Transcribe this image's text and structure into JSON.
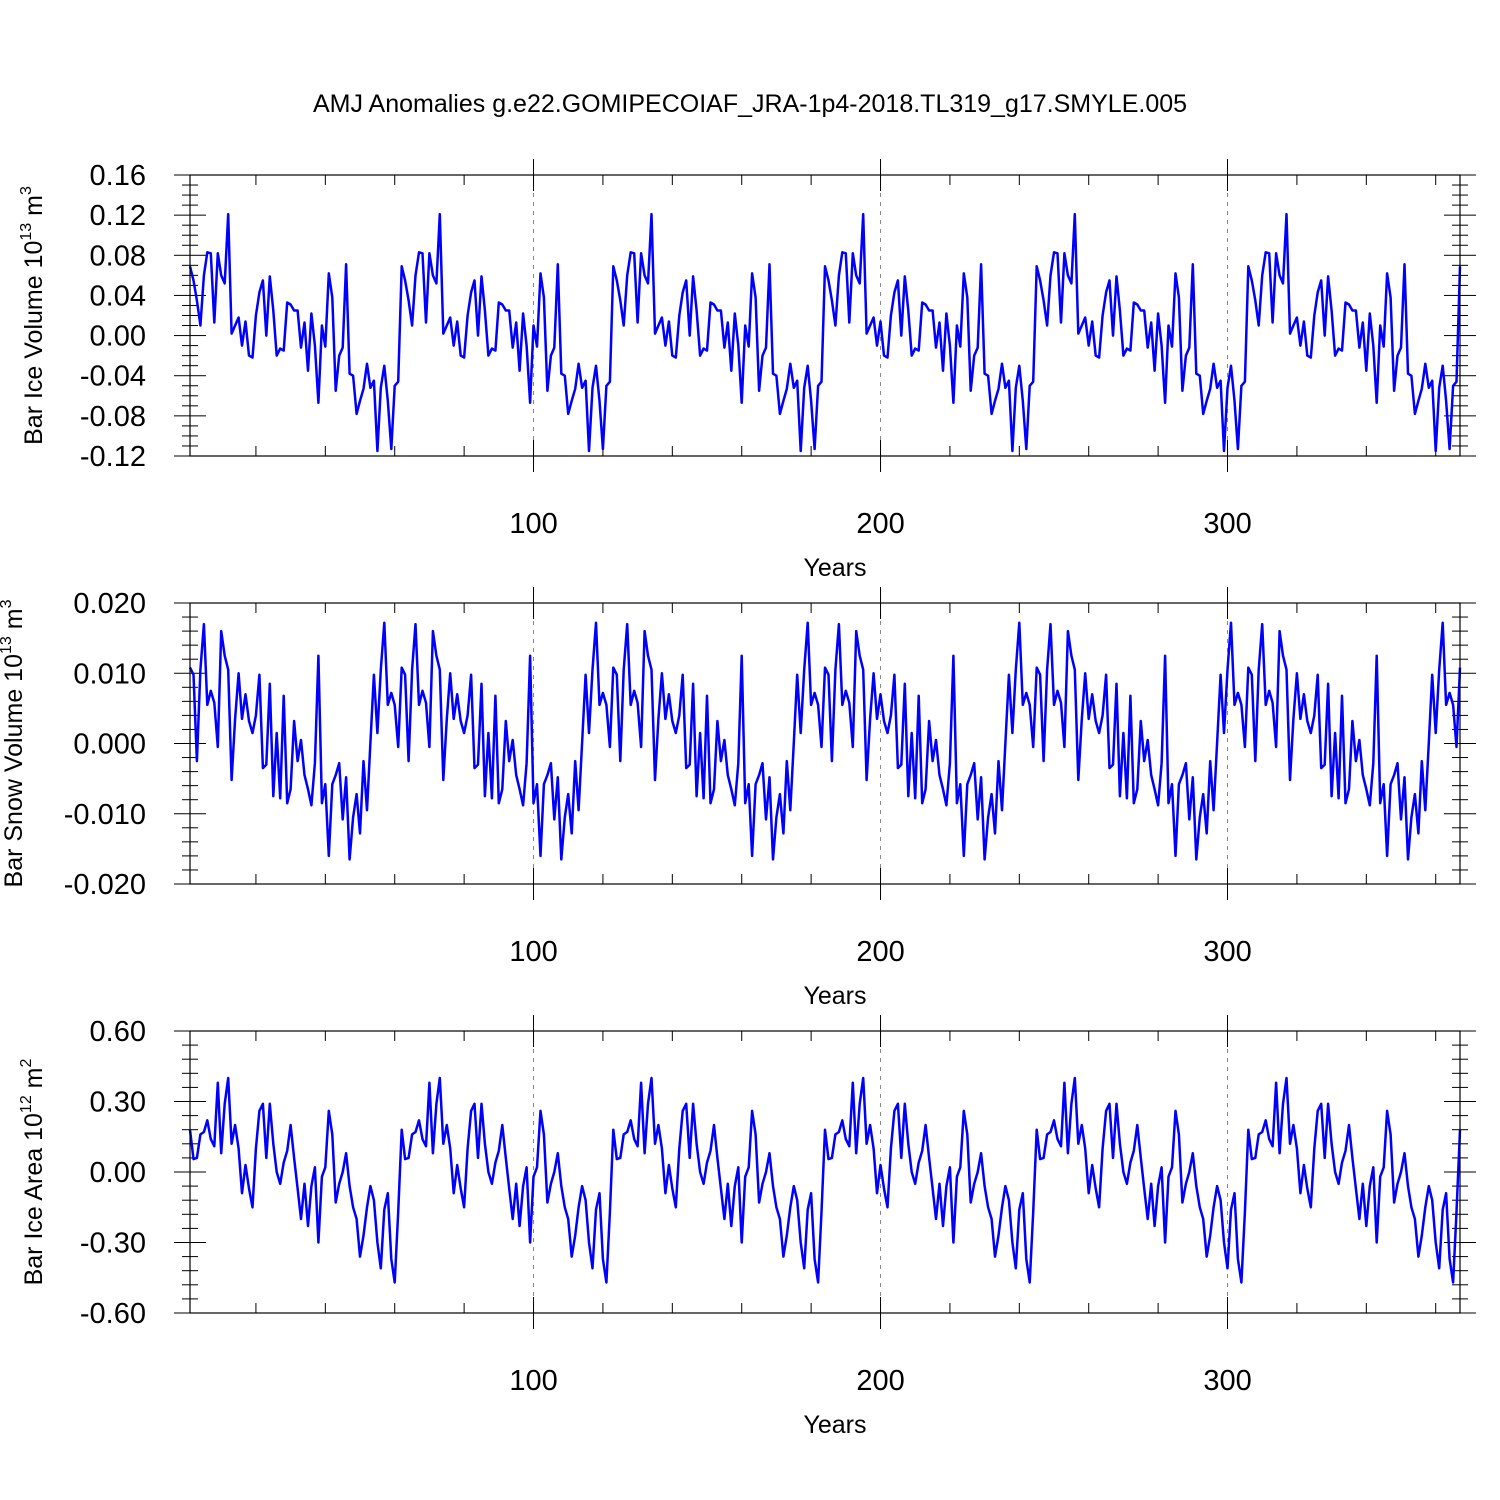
{
  "title": "AMJ Anomalies g.e22.GOMIPECOIAF_JRA-1p4-2018.TL319_g17.SMYLE.005",
  "colors": {
    "line": "#0000ff",
    "axis": "#000000",
    "gridline": "#888888"
  },
  "chart_data": [
    {
      "type": "line",
      "name": "ice-volume",
      "ylabel": "Bar Ice Volume 10",
      "ylabel_exponent": "13",
      "ylabel_unit": "m",
      "ylabel_unit_exponent": "3",
      "xlabel": "Years",
      "xlim": [
        1,
        367
      ],
      "ylim": [
        -0.12,
        0.16
      ],
      "yticks": [
        -0.12,
        -0.08,
        -0.04,
        0.0,
        0.04,
        0.08,
        0.12,
        0.16
      ],
      "ytick_labels": [
        "-0.12",
        "-0.08",
        "-0.04",
        "0.00",
        "0.04",
        "0.08",
        "0.12",
        "0.16"
      ],
      "xticks": [
        100,
        200,
        300
      ],
      "xtick_labels": [
        "100",
        "200",
        "300"
      ],
      "ref_lines_x": [
        100,
        200,
        300
      ],
      "pattern_start_year": 1,
      "pattern_repeat_years": 61,
      "pattern_values": [
        0.069,
        0.055,
        0.035,
        0.01,
        0.06,
        0.083,
        0.082,
        0.013,
        0.082,
        0.06,
        0.052,
        0.121,
        0.002,
        0.01,
        0.018,
        -0.01,
        0.014,
        -0.02,
        -0.022,
        0.02,
        0.043,
        0.055,
        0.0,
        0.059,
        0.025,
        -0.02,
        -0.013,
        -0.015,
        0.033,
        0.031,
        0.025,
        0.025,
        -0.012,
        0.013,
        -0.035,
        0.022,
        -0.01,
        -0.067,
        0.01,
        -0.011,
        0.062,
        0.038,
        -0.055,
        -0.02,
        -0.012,
        0.071,
        -0.038,
        -0.04,
        -0.078,
        -0.065,
        -0.053,
        -0.028,
        -0.052,
        -0.045,
        -0.115,
        -0.052,
        -0.03,
        -0.065,
        -0.113,
        -0.05,
        -0.046
      ]
    },
    {
      "type": "line",
      "name": "snow-volume",
      "ylabel": "Bar Snow Volume 10",
      "ylabel_exponent": "13",
      "ylabel_unit": "m",
      "ylabel_unit_exponent": "3",
      "xlabel": "Years",
      "xlim": [
        1,
        367
      ],
      "ylim": [
        -0.02,
        0.02
      ],
      "yticks": [
        -0.02,
        -0.01,
        0.0,
        0.01,
        0.02
      ],
      "ytick_labels": [
        "-0.020",
        "-0.010",
        "0.000",
        "0.010",
        "0.020"
      ],
      "xticks": [
        100,
        200,
        300
      ],
      "xtick_labels": [
        "100",
        "200",
        "300"
      ],
      "ref_lines_x": [
        100,
        200,
        300
      ],
      "pattern_start_year": 1,
      "pattern_repeat_years": 61,
      "pattern_values": [
        0.0108,
        0.0098,
        -0.0025,
        0.0105,
        0.017,
        0.0055,
        0.0075,
        0.0058,
        -0.0005,
        0.016,
        0.0125,
        0.0105,
        -0.0052,
        0.0035,
        0.01,
        0.0035,
        0.007,
        0.0032,
        0.0015,
        0.004,
        0.0098,
        -0.0035,
        -0.003,
        0.0085,
        -0.0075,
        0.0015,
        -0.0078,
        0.0068,
        -0.0085,
        -0.0065,
        0.0032,
        -0.0025,
        0.0005,
        -0.0045,
        -0.0065,
        -0.0088,
        -0.0028,
        0.0125,
        -0.0085,
        -0.0058,
        -0.016,
        -0.0058,
        -0.0045,
        -0.0028,
        -0.0108,
        -0.0048,
        -0.0165,
        -0.0105,
        -0.0072,
        -0.0128,
        -0.0025,
        -0.0095,
        0.0001,
        0.0098,
        0.0015,
        0.0105,
        0.0172,
        0.0055,
        0.0072,
        0.0055,
        -0.0005
      ]
    },
    {
      "type": "line",
      "name": "ice-area",
      "ylabel": "Bar Ice Area 10",
      "ylabel_exponent": "12",
      "ylabel_unit": "m",
      "ylabel_unit_exponent": "2",
      "xlabel": "Years",
      "xlim": [
        1,
        367
      ],
      "ylim": [
        -0.6,
        0.6
      ],
      "yticks": [
        -0.6,
        -0.3,
        0.0,
        0.3,
        0.6
      ],
      "ytick_labels": [
        "-0.60",
        "-0.30",
        "0.00",
        "0.30",
        "0.60"
      ],
      "xticks": [
        100,
        200,
        300
      ],
      "xtick_labels": [
        "100",
        "200",
        "300"
      ],
      "ref_lines_x": [
        100,
        200,
        300
      ],
      "pattern_start_year": 1,
      "pattern_repeat_years": 61,
      "pattern_values": [
        0.18,
        0.055,
        0.06,
        0.16,
        0.17,
        0.22,
        0.14,
        0.11,
        0.38,
        0.08,
        0.29,
        0.4,
        0.12,
        0.2,
        0.1,
        -0.09,
        0.03,
        -0.07,
        -0.15,
        0.1,
        0.26,
        0.29,
        0.06,
        0.29,
        0.12,
        0.0,
        -0.05,
        0.04,
        0.09,
        0.2,
        0.06,
        -0.07,
        -0.2,
        -0.05,
        -0.23,
        -0.06,
        0.02,
        -0.3,
        -0.02,
        0.02,
        0.26,
        0.16,
        -0.13,
        -0.05,
        0.0,
        0.08,
        -0.06,
        -0.15,
        -0.2,
        -0.36,
        -0.27,
        -0.15,
        -0.06,
        -0.12,
        -0.3,
        -0.41,
        -0.16,
        -0.09,
        -0.37,
        -0.47,
        -0.17
      ]
    }
  ]
}
